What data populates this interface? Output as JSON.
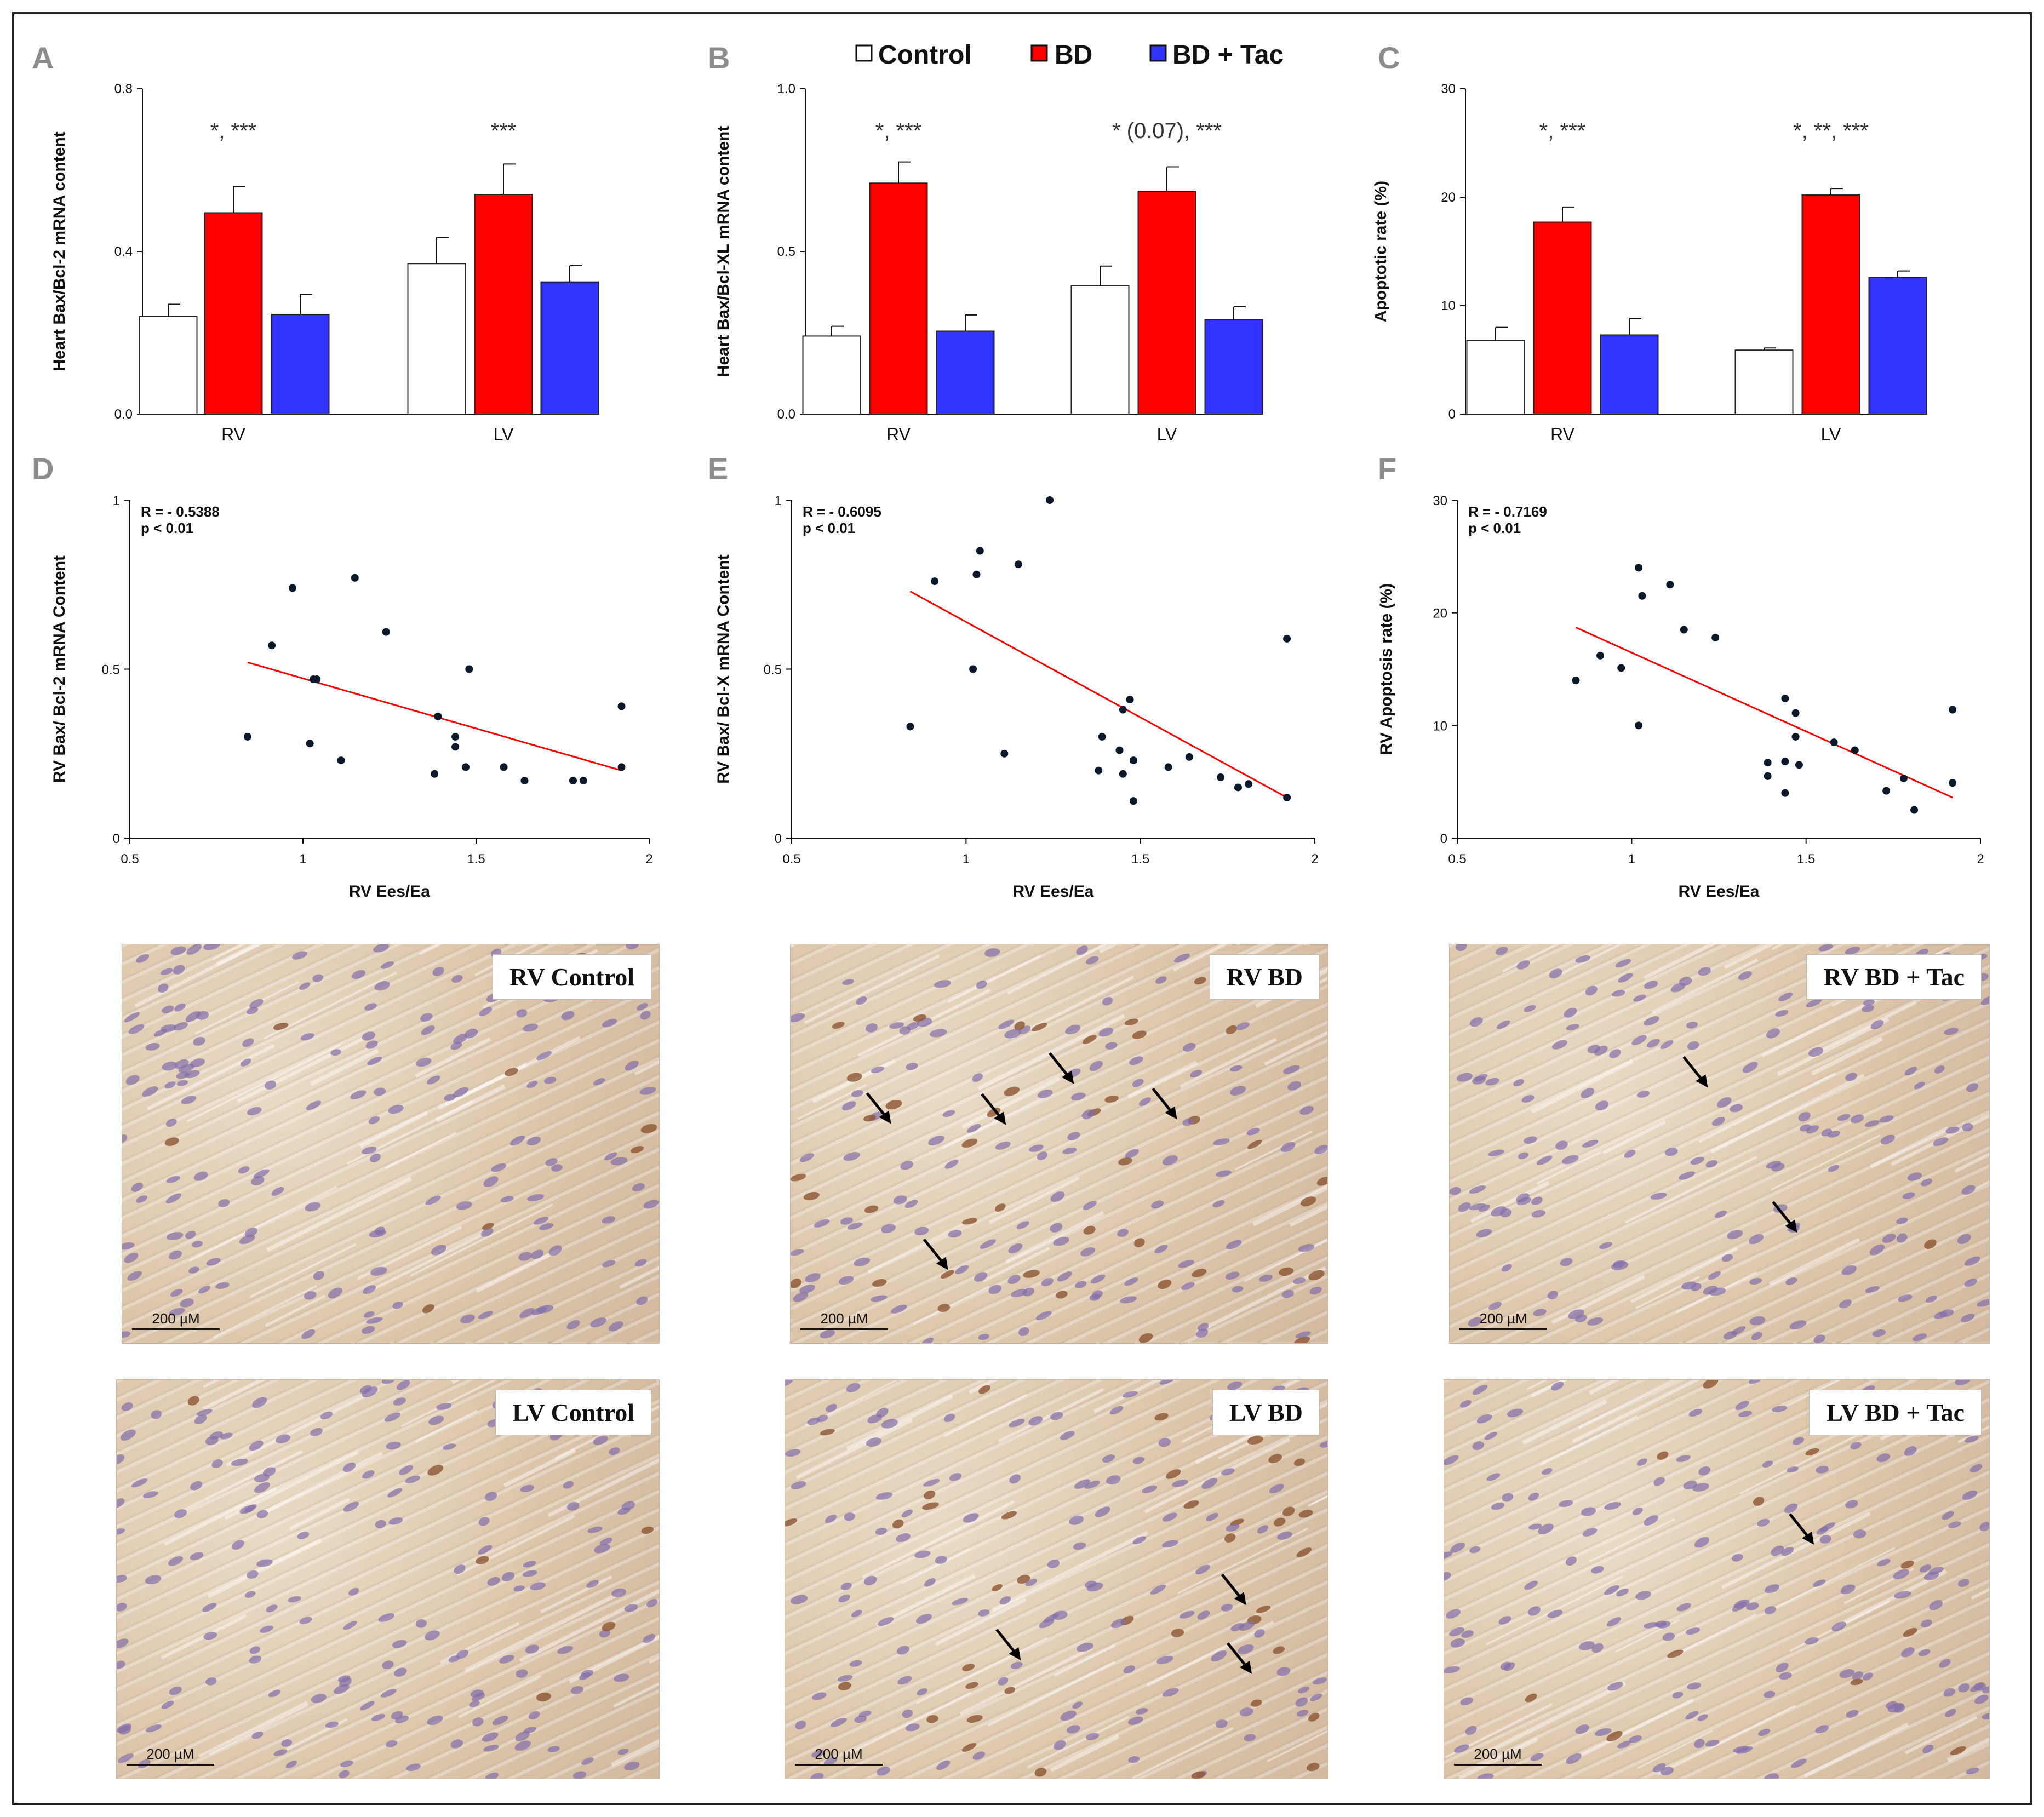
{
  "legend": [
    {
      "label": "Control",
      "color": "#ffffff"
    },
    {
      "label": "BD",
      "color": "#ff0000"
    },
    {
      "label": "BD + Tac",
      "color": "#3333ff"
    }
  ],
  "colors": {
    "control": "#ffffff",
    "bd": "#ff0000",
    "bdtac": "#3333ff",
    "fit_line": "#ff0000",
    "point": "#0a1a2a",
    "arrow": "#000000"
  },
  "chart_data": [
    {
      "panel": "A",
      "type": "bar",
      "ylabel": "Heart Bax/Bcl-2  mRNA content",
      "ylim": [
        0,
        0.8
      ],
      "yticks": [
        "0.0",
        "0.4",
        "0.8"
      ],
      "ytick_values": [
        0,
        0.4,
        0.8
      ],
      "categories": [
        "RV",
        "LV"
      ],
      "series": [
        {
          "name": "Control",
          "values": [
            0.24,
            0.37
          ],
          "errors": [
            0.03,
            0.065
          ]
        },
        {
          "name": "BD",
          "values": [
            0.495,
            0.54
          ],
          "errors": [
            0.065,
            0.075
          ]
        },
        {
          "name": "BD + Tac",
          "values": [
            0.245,
            0.325
          ],
          "errors": [
            0.05,
            0.04
          ]
        }
      ],
      "annotations": [
        {
          "category": "RV",
          "text": "*, ***"
        },
        {
          "category": "LV",
          "text": "***"
        }
      ]
    },
    {
      "panel": "B",
      "type": "bar",
      "ylabel": "Heart Bax/Bcl-XL  mRNA content",
      "ylim": [
        0,
        1.0
      ],
      "yticks": [
        "0.0",
        "0.5",
        "1.0"
      ],
      "ytick_values": [
        0,
        0.5,
        1.0
      ],
      "categories": [
        "RV",
        "LV"
      ],
      "series": [
        {
          "name": "Control",
          "values": [
            0.24,
            0.395
          ],
          "errors": [
            0.03,
            0.06
          ]
        },
        {
          "name": "BD",
          "values": [
            0.71,
            0.685
          ],
          "errors": [
            0.065,
            0.075
          ]
        },
        {
          "name": "BD + Tac",
          "values": [
            0.255,
            0.29
          ],
          "errors": [
            0.05,
            0.04
          ]
        }
      ],
      "annotations": [
        {
          "category": "RV",
          "text": "*, ***"
        },
        {
          "category": "LV",
          "text": "* (0.07), ***"
        }
      ]
    },
    {
      "panel": "C",
      "type": "bar",
      "ylabel": "Apoptotic rate (%)",
      "ylim": [
        0,
        30
      ],
      "yticks": [
        "0",
        "10",
        "20",
        "30"
      ],
      "ytick_values": [
        0,
        10,
        20,
        30
      ],
      "categories": [
        "RV",
        "LV"
      ],
      "series": [
        {
          "name": "Control",
          "values": [
            6.8,
            5.9
          ],
          "errors": [
            1.2,
            0.2
          ]
        },
        {
          "name": "BD",
          "values": [
            17.7,
            20.2
          ],
          "errors": [
            1.4,
            0.6
          ]
        },
        {
          "name": "BD + Tac",
          "values": [
            7.3,
            12.6
          ],
          "errors": [
            1.5,
            0.6
          ]
        }
      ],
      "annotations": [
        {
          "category": "RV",
          "text": "*, ***"
        },
        {
          "category": "LV",
          "text": "*, **, ***"
        }
      ]
    },
    {
      "panel": "D",
      "type": "scatter",
      "xlabel": "RV Ees/Ea",
      "ylabel": "RV Bax/ Bcl-2 mRNA Content",
      "xlim": [
        0.5,
        2
      ],
      "ylim": [
        0,
        1
      ],
      "xticks": [
        "0.5",
        "1",
        "1.5",
        "2"
      ],
      "xtick_values": [
        0.5,
        1,
        1.5,
        2
      ],
      "yticks": [
        "0",
        "0.5",
        "1"
      ],
      "ytick_values": [
        0,
        0.5,
        1
      ],
      "stats": {
        "r": "R = - 0.5388",
        "p": "p <  0.01"
      },
      "fit": {
        "x": [
          0.84,
          1.92
        ],
        "y": [
          0.52,
          0.2
        ]
      },
      "points": [
        [
          0.84,
          0.3
        ],
        [
          0.91,
          0.57
        ],
        [
          0.97,
          0.74
        ],
        [
          1.02,
          0.28
        ],
        [
          1.03,
          0.47
        ],
        [
          1.04,
          0.47
        ],
        [
          1.11,
          0.23
        ],
        [
          1.15,
          0.77
        ],
        [
          1.24,
          0.61
        ],
        [
          1.38,
          0.19
        ],
        [
          1.39,
          0.36
        ],
        [
          1.44,
          0.3
        ],
        [
          1.44,
          0.27
        ],
        [
          1.47,
          0.21
        ],
        [
          1.48,
          0.5
        ],
        [
          1.58,
          0.21
        ],
        [
          1.64,
          0.17
        ],
        [
          1.78,
          0.17
        ],
        [
          1.81,
          0.17
        ],
        [
          1.92,
          0.39
        ],
        [
          1.92,
          0.21
        ]
      ]
    },
    {
      "panel": "E",
      "type": "scatter",
      "xlabel": "RV Ees/Ea",
      "ylabel": "RV Bax/ Bcl-X mRNA Content",
      "xlim": [
        0.5,
        2
      ],
      "ylim": [
        0,
        1
      ],
      "xticks": [
        "0.5",
        "1",
        "1.5",
        "2"
      ],
      "xtick_values": [
        0.5,
        1,
        1.5,
        2
      ],
      "yticks": [
        "0",
        "0.5",
        "1"
      ],
      "ytick_values": [
        0,
        0.5,
        1
      ],
      "stats": {
        "r": "R = - 0.6095",
        "p": "p <  0.01"
      },
      "fit": {
        "x": [
          0.84,
          1.92
        ],
        "y": [
          0.73,
          0.12
        ]
      },
      "points": [
        [
          0.84,
          0.33
        ],
        [
          0.91,
          0.76
        ],
        [
          1.02,
          0.5
        ],
        [
          1.03,
          0.78
        ],
        [
          1.04,
          0.85
        ],
        [
          1.11,
          0.25
        ],
        [
          1.15,
          0.81
        ],
        [
          1.24,
          1.0
        ],
        [
          1.38,
          0.2
        ],
        [
          1.39,
          0.3
        ],
        [
          1.44,
          0.26
        ],
        [
          1.45,
          0.38
        ],
        [
          1.45,
          0.19
        ],
        [
          1.47,
          0.41
        ],
        [
          1.48,
          0.23
        ],
        [
          1.48,
          0.11
        ],
        [
          1.58,
          0.21
        ],
        [
          1.64,
          0.24
        ],
        [
          1.73,
          0.18
        ],
        [
          1.78,
          0.15
        ],
        [
          1.81,
          0.16
        ],
        [
          1.92,
          0.59
        ],
        [
          1.92,
          0.12
        ]
      ]
    },
    {
      "panel": "F",
      "type": "scatter",
      "xlabel": "RV Ees/Ea",
      "ylabel": "RV Apoptosis rate (%)",
      "xlim": [
        0.5,
        2
      ],
      "ylim": [
        0,
        30
      ],
      "xticks": [
        "0.5",
        "1",
        "1.5",
        "2"
      ],
      "xtick_values": [
        0.5,
        1,
        1.5,
        2
      ],
      "yticks": [
        "0",
        "10",
        "20",
        "30"
      ],
      "ytick_values": [
        0,
        10,
        20,
        30
      ],
      "stats": {
        "r": "R = - 0.7169",
        "p": "p <  0.01"
      },
      "fit": {
        "x": [
          0.84,
          1.92
        ],
        "y": [
          18.7,
          3.6
        ]
      },
      "points": [
        [
          0.84,
          14.0
        ],
        [
          0.91,
          16.2
        ],
        [
          0.97,
          15.1
        ],
        [
          1.02,
          24.0
        ],
        [
          1.03,
          21.5
        ],
        [
          1.02,
          10.0
        ],
        [
          1.11,
          22.5
        ],
        [
          1.15,
          18.5
        ],
        [
          1.24,
          17.8
        ],
        [
          1.39,
          6.7
        ],
        [
          1.39,
          5.5
        ],
        [
          1.44,
          12.4
        ],
        [
          1.44,
          6.8
        ],
        [
          1.44,
          4.0
        ],
        [
          1.47,
          11.1
        ],
        [
          1.47,
          9.0
        ],
        [
          1.48,
          6.5
        ],
        [
          1.58,
          8.5
        ],
        [
          1.64,
          7.8
        ],
        [
          1.73,
          4.2
        ],
        [
          1.78,
          5.3
        ],
        [
          1.81,
          2.5
        ],
        [
          1.92,
          11.4
        ],
        [
          1.92,
          4.9
        ]
      ]
    }
  ],
  "panel_letters": [
    "A",
    "B",
    "C",
    "D",
    "E",
    "F"
  ],
  "micrographs": [
    {
      "label": "RV Control",
      "scale": "200 µM",
      "arrows": 0
    },
    {
      "label": "RV BD",
      "scale": "200 µM",
      "arrows": 5
    },
    {
      "label": "RV BD + Tac",
      "scale": "200 µM",
      "arrows": 2
    },
    {
      "label": "LV Control",
      "scale": "200 µM",
      "arrows": 0
    },
    {
      "label": "LV BD",
      "scale": "200 µM",
      "arrows": 3
    },
    {
      "label": "LV BD + Tac",
      "scale": "200 µM",
      "arrows": 1
    }
  ]
}
